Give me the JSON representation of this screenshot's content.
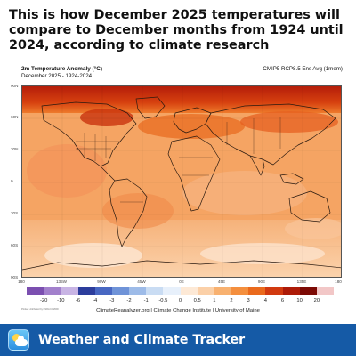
{
  "headline": "This is how December 2025 temperatures will compare to December months from 1924 until 2024, according to climate research",
  "map": {
    "title": "2m Temperature Anomaly (°C)",
    "period": "December 2025 - 1924-2024",
    "model": "CMIP5 RCP8.5 Ens Avg (1mem)",
    "lat_ticks": [
      "90N",
      "60N",
      "30N",
      "0",
      "30S",
      "60S",
      "90S"
    ],
    "lon_ticks": [
      "180",
      "135W",
      "90W",
      "45W",
      "0E",
      "45E",
      "90E",
      "135E",
      "180"
    ],
    "legend": {
      "labels": [
        "-20",
        "-10",
        "-6",
        "-4",
        "-3",
        "-2",
        "-1",
        "-0.5",
        "0",
        "0.5",
        "1",
        "2",
        "3",
        "4",
        "6",
        "10",
        "20"
      ],
      "colors": [
        "#7b4fb0",
        "#a280cc",
        "#c8b4e4",
        "#2c3d9c",
        "#4867c2",
        "#6f93d8",
        "#9dbbe8",
        "#c9dcf3",
        "#e7f0fb",
        "#fde9d6",
        "#fbd0a8",
        "#f8b170",
        "#f48f3e",
        "#ea6a1d",
        "#d13a10",
        "#ad1b08",
        "#7c0a05",
        "#f2c7c7"
      ]
    },
    "credit": "ClimateReanalyzer.org | Climate Change Institute | University of Maine",
    "fineprint": "Plotted: Attributed by ESRL/CCI/DRI"
  },
  "footer": {
    "icon": "weather-app-icon",
    "app_name": "Weather and Climate Tracker",
    "background": "#155aa6"
  }
}
